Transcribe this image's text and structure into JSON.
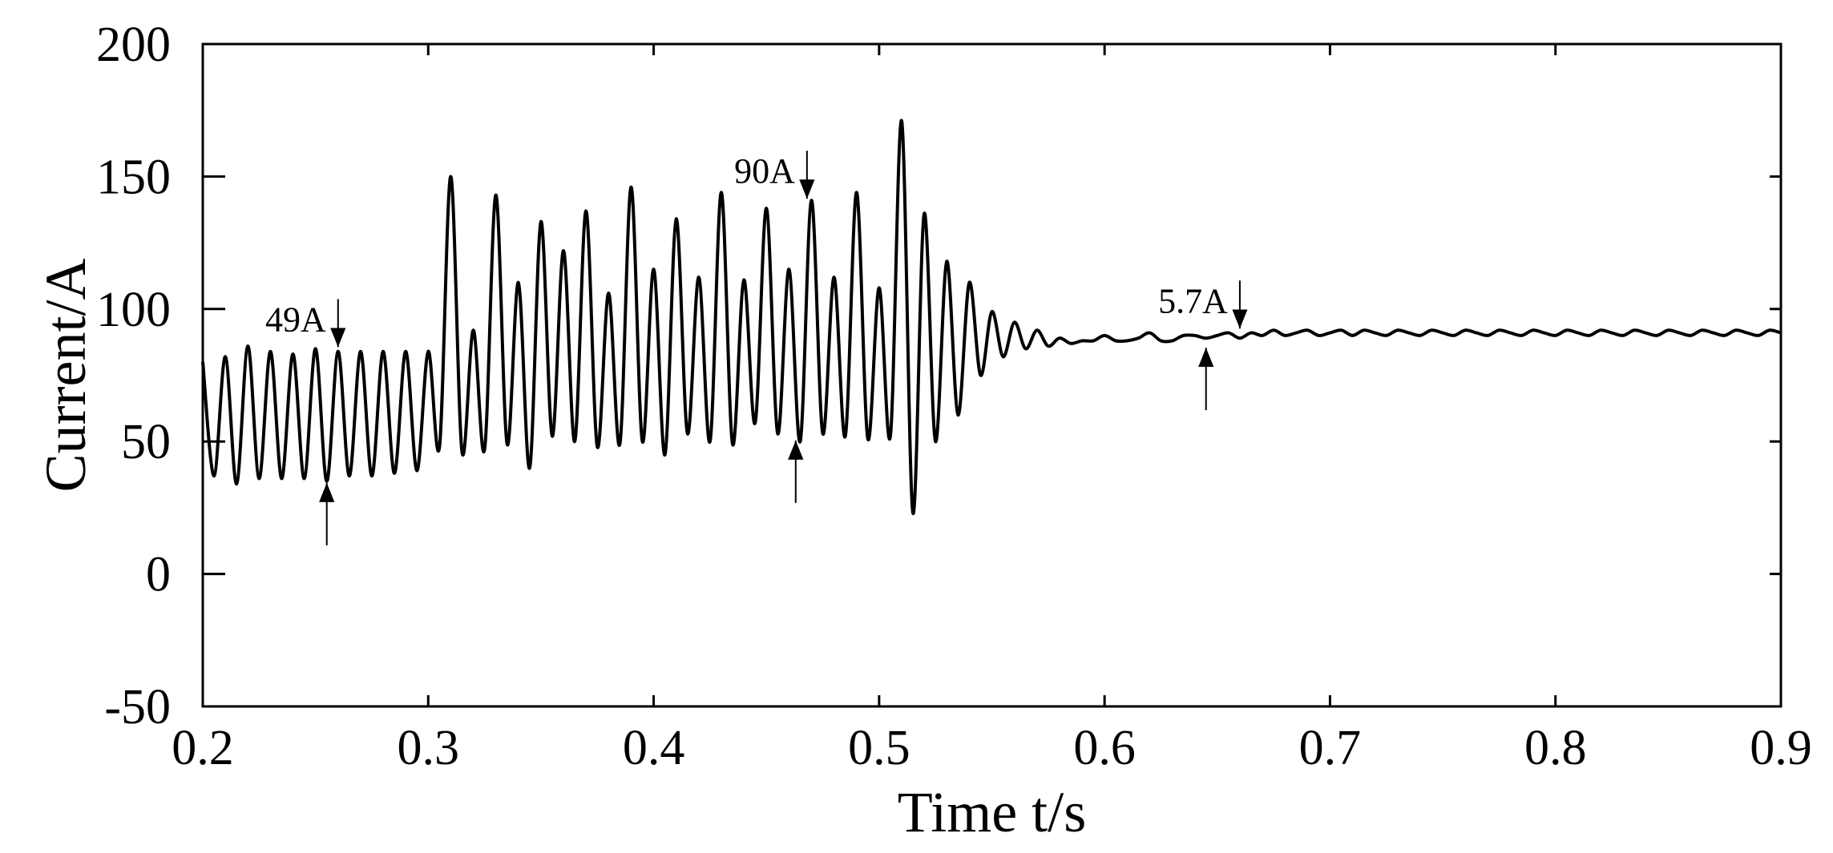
{
  "chart_data": {
    "type": "line",
    "title": "",
    "xlabel": "Time t/s",
    "ylabel": "Current/A",
    "xlim": [
      0.2,
      0.9
    ],
    "ylim": [
      -50,
      200
    ],
    "xticks": [
      0.2,
      0.3,
      0.4,
      0.5,
      0.6,
      0.7,
      0.8,
      0.9
    ],
    "xtick_labels": [
      "0.2",
      "0.3",
      "0.4",
      "0.5",
      "0.6",
      "0.7",
      "0.8",
      "0.9"
    ],
    "yticks": [
      -50,
      0,
      50,
      100,
      150,
      200
    ],
    "ytick_labels": [
      "-50",
      "0",
      "50",
      "100",
      "150",
      "200"
    ],
    "grid": false,
    "line_color": "#000000",
    "series": [
      {
        "x": [
          0.2,
          0.205,
          0.21,
          0.215,
          0.22,
          0.225,
          0.23,
          0.235,
          0.24,
          0.245,
          0.25,
          0.255,
          0.26,
          0.265,
          0.27,
          0.275,
          0.28,
          0.285,
          0.29,
          0.295,
          0.3,
          0.305,
          0.31,
          0.315,
          0.32,
          0.325,
          0.33,
          0.335,
          0.34,
          0.345,
          0.35,
          0.355,
          0.36,
          0.365,
          0.37,
          0.375,
          0.38,
          0.385,
          0.39,
          0.395,
          0.4,
          0.405,
          0.41,
          0.415,
          0.42,
          0.425,
          0.43,
          0.435,
          0.44,
          0.445,
          0.45,
          0.455,
          0.46,
          0.465,
          0.47,
          0.475,
          0.48,
          0.485,
          0.49,
          0.495,
          0.5,
          0.505,
          0.51,
          0.515,
          0.52,
          0.525,
          0.53,
          0.535,
          0.54,
          0.545,
          0.55,
          0.555,
          0.56,
          0.565,
          0.57,
          0.575,
          0.58,
          0.585,
          0.59,
          0.595,
          0.6,
          0.605,
          0.61,
          0.615,
          0.62,
          0.625,
          0.63,
          0.635,
          0.64,
          0.645,
          0.65,
          0.655,
          0.66,
          0.665,
          0.67,
          0.675,
          0.68,
          0.685,
          0.69,
          0.695,
          0.7,
          0.705,
          0.71,
          0.715,
          0.72,
          0.725,
          0.73,
          0.735,
          0.74,
          0.745,
          0.75,
          0.755,
          0.76,
          0.765,
          0.77,
          0.775,
          0.78,
          0.785,
          0.79,
          0.795,
          0.8,
          0.805,
          0.81,
          0.815,
          0.82,
          0.825,
          0.83,
          0.835,
          0.84,
          0.845,
          0.85,
          0.855,
          0.86,
          0.865,
          0.87,
          0.875,
          0.88,
          0.885,
          0.89,
          0.895,
          0.9
        ],
        "y": [
          80,
          37,
          82,
          34,
          86,
          36,
          84,
          36,
          83,
          36,
          85,
          35,
          84,
          37,
          84,
          37,
          84,
          38,
          84,
          39,
          84,
          48,
          150,
          46,
          92,
          47,
          143,
          49,
          110,
          40,
          133,
          52,
          122,
          50,
          137,
          48,
          106,
          49,
          146,
          50,
          115,
          45,
          134,
          53,
          112,
          50,
          144,
          49,
          111,
          57,
          138,
          53,
          115,
          50,
          141,
          53,
          112,
          52,
          144,
          51,
          108,
          52,
          171,
          23,
          136,
          50,
          118,
          60,
          110,
          75,
          99,
          82,
          95,
          85,
          92,
          86,
          89,
          87,
          88,
          88,
          90,
          88,
          88,
          89,
          91,
          88,
          88,
          90,
          90,
          89,
          90,
          91,
          89,
          91,
          90,
          92,
          90,
          91,
          92,
          90,
          91,
          92,
          90,
          92,
          91,
          90,
          92,
          91,
          90,
          92,
          91,
          90,
          92,
          91,
          90,
          92,
          91,
          90,
          92,
          91,
          90,
          92,
          91,
          90,
          92,
          91,
          90,
          92,
          91,
          90,
          92,
          91,
          90,
          92,
          91,
          90,
          92,
          91,
          90,
          92,
          91
        ]
      }
    ],
    "annotations": [
      {
        "label": "49A",
        "x_top": 0.26,
        "y_top": 85,
        "x_bottom": 0.255,
        "y_bottom": 35
      },
      {
        "label": "90A",
        "x_top": 0.468,
        "y_top": 141,
        "x_bottom": 0.463,
        "y_bottom": 51
      },
      {
        "label": "5.7A",
        "x_top": 0.66,
        "y_top": 92,
        "x_bottom": 0.645,
        "y_bottom": 86
      }
    ]
  }
}
